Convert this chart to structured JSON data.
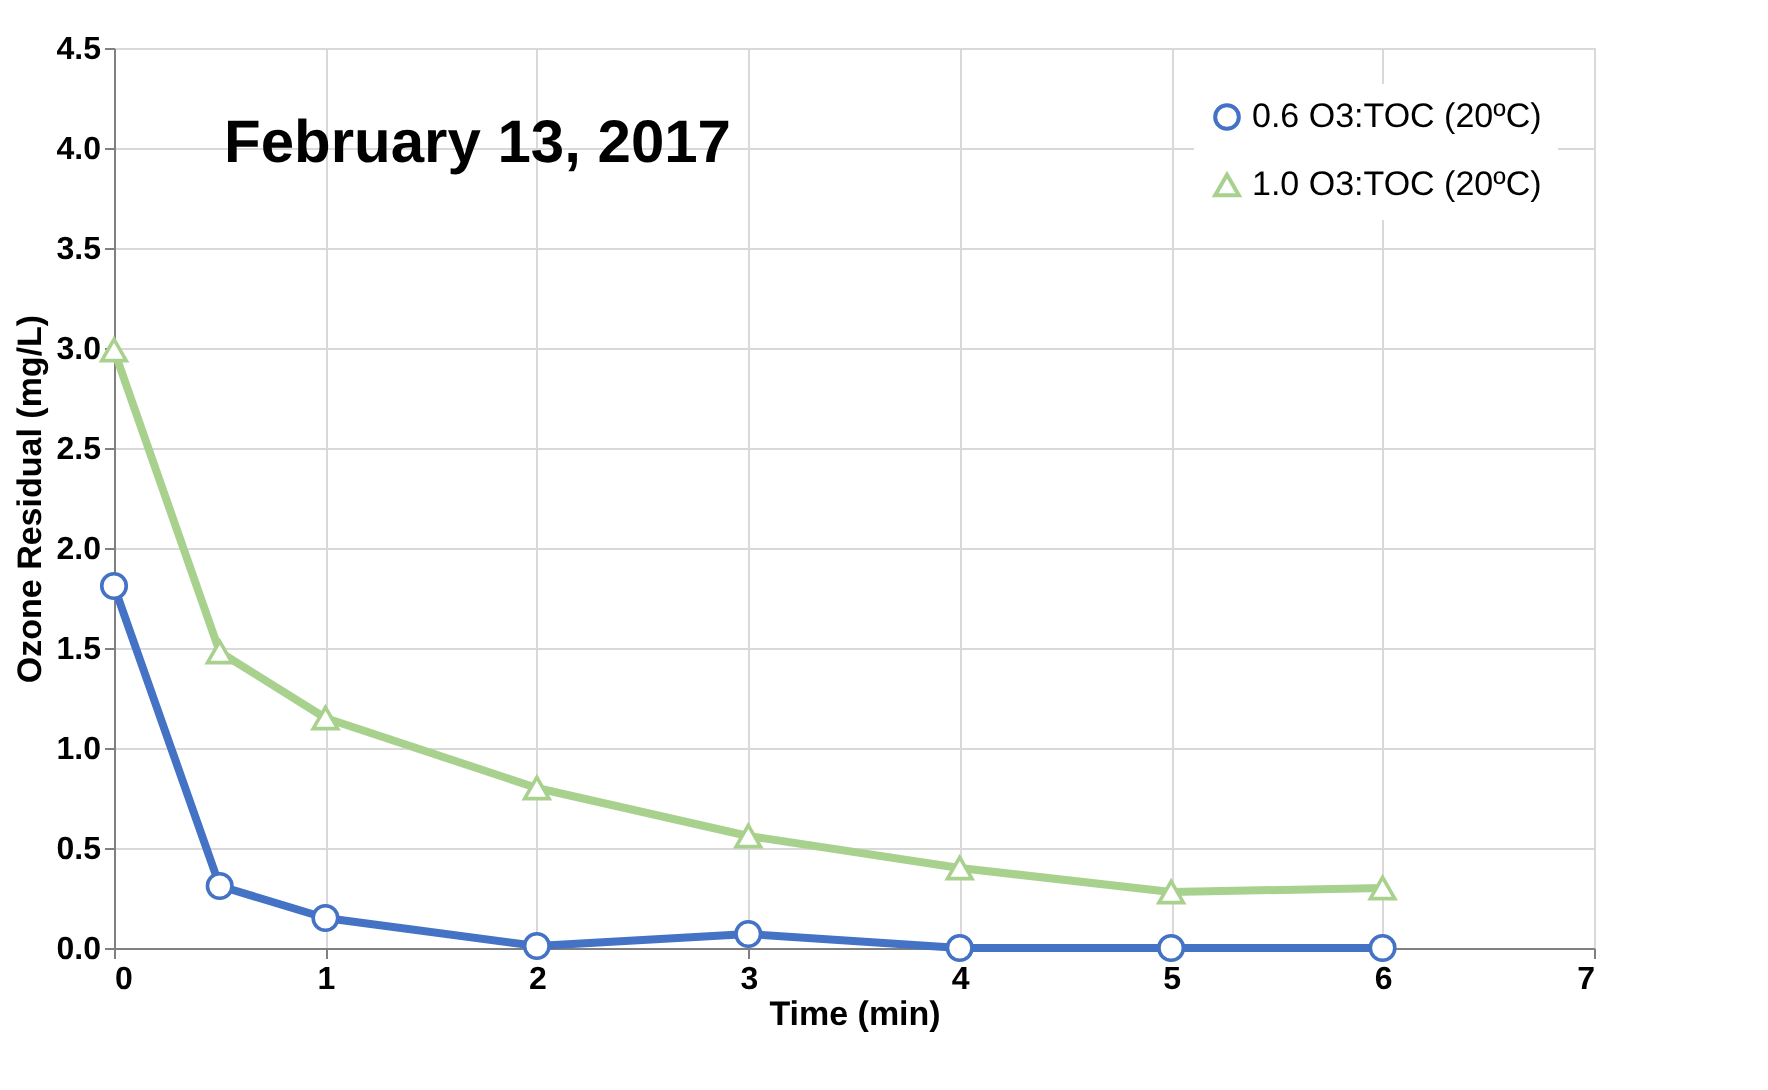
{
  "chart_data": {
    "type": "line",
    "annotations": [
      "February 13, 2017"
    ],
    "xlabel": "Time (min)",
    "ylabel": "Ozone Residual (mg/L)",
    "x": [
      0,
      0.5,
      1,
      2,
      3,
      4,
      5,
      6
    ],
    "series": [
      {
        "name": "0.6 O3:TOC (20ºC)",
        "color": "#4472c4",
        "marker": "circle",
        "values": [
          1.81,
          0.31,
          0.15,
          0.01,
          0.07,
          0.0,
          0.0,
          0.0
        ]
      },
      {
        "name": "1.0 O3:TOC (20ºC)",
        "color": "#a9d18e",
        "marker": "triangle",
        "values": [
          2.99,
          1.48,
          1.15,
          0.8,
          0.56,
          0.4,
          0.28,
          0.3
        ]
      }
    ],
    "xlim": [
      0,
      7
    ],
    "xticks": [
      0,
      1,
      2,
      3,
      4,
      5,
      6,
      7
    ],
    "ylim": [
      0,
      4.5
    ],
    "yticks": [
      {
        "value": 0,
        "label": "0.0"
      },
      {
        "value": 0.5,
        "label": "0.5"
      },
      {
        "value": 1,
        "label": "1.0"
      },
      {
        "value": 1.5,
        "label": "1.5"
      },
      {
        "value": 2,
        "label": "2.0"
      },
      {
        "value": 2.5,
        "label": "2.5"
      },
      {
        "value": 3,
        "label": "3.0"
      },
      {
        "value": 3.5,
        "label": "3.5"
      },
      {
        "value": 4,
        "label": "4.0"
      },
      {
        "value": 4.5,
        "label": "4.5"
      }
    ],
    "grid": true,
    "legend": "top right",
    "line_style": "solid"
  }
}
